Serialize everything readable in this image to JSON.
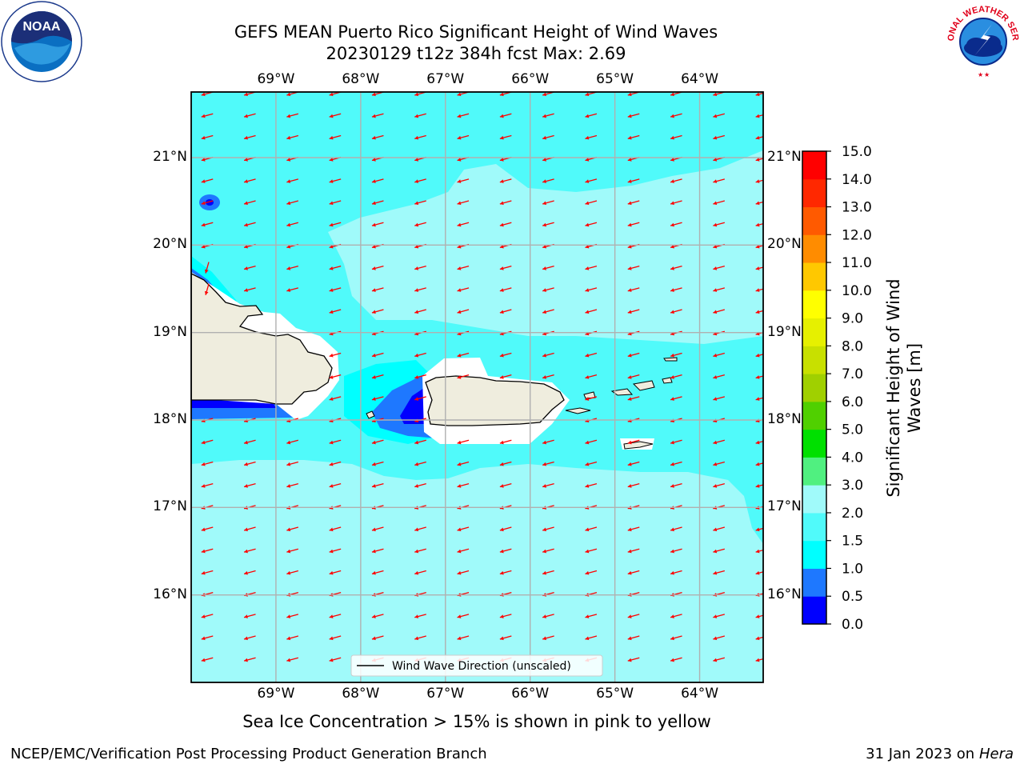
{
  "header": {
    "title_line1": "GEFS MEAN Puerto Rico Significant Height of Wind Waves",
    "title_line2": "20230129 t12z 384h fcst   Max: 2.69"
  },
  "map": {
    "lon_range": [
      -70.0,
      -63.25
    ],
    "lat_range": [
      15.0,
      21.75
    ],
    "lon_ticks_top": [
      "69°W",
      "68°W",
      "67°W",
      "66°W",
      "65°W",
      "64°W"
    ],
    "lon_ticks_bottom": [
      "69°W",
      "68°W",
      "67°W",
      "66°W",
      "65°W",
      "64°W"
    ],
    "lat_ticks_left": [
      "21°N",
      "20°N",
      "19°N",
      "18°N",
      "17°N",
      "16°N"
    ],
    "lat_ticks_right": [
      "21°N",
      "20°N",
      "19°N",
      "18°N",
      "17°N",
      "16°N"
    ],
    "gridlines": true,
    "vector_color": "#ff0000",
    "land_color": "#efedde",
    "legend": {
      "label": "Wind Wave Direction (unscaled)",
      "placement": "lower-center"
    }
  },
  "colorbar": {
    "title": "Significant Height of Wind Waves [m]",
    "title_line1": "Significant Height of Wind",
    "title_line2": "Waves [m]",
    "ticks": [
      "0.0",
      "0.5",
      "1.0",
      "1.5",
      "2.0",
      "3.0",
      "4.0",
      "5.0",
      "6.0",
      "7.0",
      "8.0",
      "9.0",
      "10.0",
      "11.0",
      "12.0",
      "13.0",
      "14.0",
      "15.0"
    ],
    "colors": [
      "#0000ff",
      "#1e78ff",
      "#00ffff",
      "#50fafa",
      "#a0fafa",
      "#50f080",
      "#00e000",
      "#50d000",
      "#a0d000",
      "#c8e000",
      "#e6f000",
      "#ffff00",
      "#ffc800",
      "#ff8c00",
      "#ff5a00",
      "#ff2800",
      "#ff0000"
    ]
  },
  "subtitle": "Sea Ice Concentration > 15% is shown in pink to yellow",
  "footer": {
    "left": "NCEP/EMC/Verification Post Processing Product Generation Branch",
    "right_prefix": "31 Jan 2023 on ",
    "right_host": "Hera"
  },
  "logos": {
    "left": {
      "name": "noaa-logo",
      "text": "NOAA"
    },
    "right": {
      "name": "nws-logo",
      "text": "NATIONAL WEATHER SERVICE"
    }
  }
}
